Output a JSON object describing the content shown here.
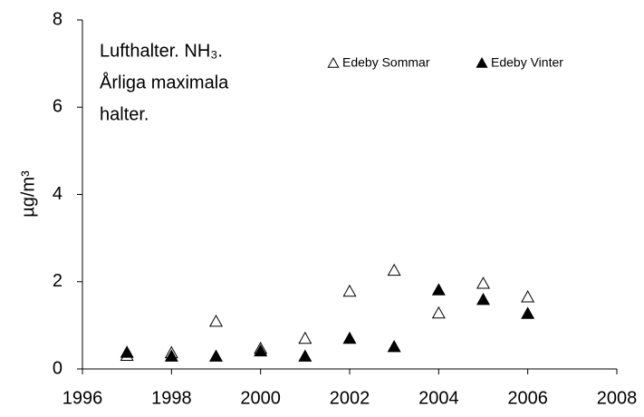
{
  "chart_data": {
    "type": "scatter",
    "annotation": [
      "Lufthalter. NH₃.",
      "Årliga maximala",
      "halter."
    ],
    "y_label": "µg/m³",
    "x": [
      1997,
      1998,
      1999,
      2000,
      2001,
      2002,
      2003,
      2004,
      2005,
      2006
    ],
    "series": [
      {
        "name": "Edeby Sommar",
        "color": "#000000",
        "marker": "open-triangle",
        "values": [
          0.3,
          0.36,
          1.08,
          0.46,
          0.69,
          1.77,
          2.25,
          1.27,
          1.95,
          1.64
        ]
      },
      {
        "name": "Edeby Vinter",
        "color": "#000000",
        "marker": "filled-triangle",
        "values": [
          0.37,
          0.28,
          0.28,
          0.4,
          0.28,
          0.69,
          0.5,
          1.8,
          1.58,
          1.26
        ]
      }
    ],
    "xlim": [
      1996,
      2008
    ],
    "xticks": [
      1996,
      1998,
      2000,
      2002,
      2004,
      2006,
      2008
    ],
    "ylim": [
      0,
      8
    ],
    "yticks": [
      0,
      2,
      4,
      6,
      8
    ],
    "grid": false,
    "legend": "top"
  }
}
